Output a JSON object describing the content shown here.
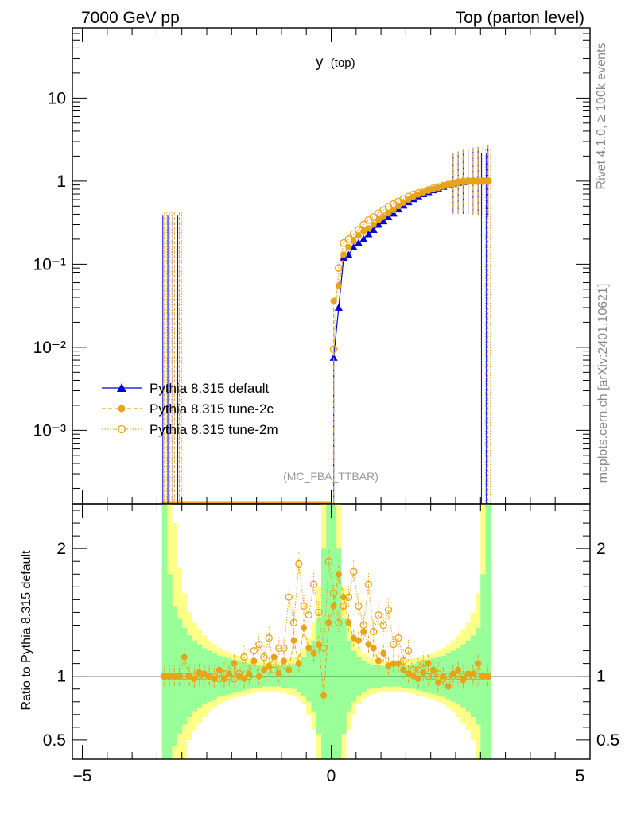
{
  "header": {
    "left": "7000 GeV pp",
    "right": "Top (parton level)"
  },
  "side_labels": {
    "rivet": "Rivet 4.1.0, ≥ 100k events",
    "mcplots": "mcplots.cern.ch [arXiv:2401.10621]"
  },
  "chart_data": {
    "type": "line",
    "title": "y",
    "title_sub": "(top)",
    "watermark": "(MC_FBA_TTBAR)",
    "xlabel": "",
    "ylabel_ratio": "Ratio to Pythia 8.315 default",
    "xlim": [
      -5.2,
      5.2
    ],
    "ylim_main": [
      0.00013,
      70
    ],
    "ylim_ratio": [
      0.35,
      2.35
    ],
    "x_ticks": [
      {
        "v": -5,
        "label": "−5"
      },
      {
        "v": 0,
        "label": "0"
      },
      {
        "v": 5,
        "label": "5"
      }
    ],
    "y_ticks_main": [
      {
        "v": 10,
        "label": "10"
      },
      {
        "v": 1,
        "label": "1"
      },
      {
        "v": 0.1,
        "label": "10⁻¹"
      },
      {
        "v": 0.01,
        "label": "10⁻²"
      },
      {
        "v": 0.001,
        "label": "10⁻³"
      }
    ],
    "y_ticks_ratio": [
      {
        "v": 2,
        "label": "2"
      },
      {
        "v": 1,
        "label": "1"
      },
      {
        "v": 0.5,
        "label": "0.5"
      }
    ],
    "legend": {
      "placement": "middle-left",
      "entries": [
        {
          "name": "Pythia 8.315 default",
          "color": "#0000dd",
          "marker": "triangle",
          "style": "solid"
        },
        {
          "name": "Pythia 8.315 tune-2c",
          "color": "#e8a317",
          "marker": "circle",
          "style": "dashed"
        },
        {
          "name": "Pythia 8.315 tune-2m",
          "color": "#e8a317",
          "marker": "open-circle",
          "style": "dotted"
        }
      ]
    },
    "colors": {
      "band_inner": "#99ff99",
      "band_outer": "#ffff88",
      "default": "#0000dd",
      "tune": "#e8a317"
    },
    "series": [
      {
        "name": "Pythia 8.315 default",
        "x": [
          0.05,
          0.15,
          0.25,
          0.35,
          0.45,
          0.55,
          0.65,
          0.75,
          0.85,
          0.95,
          1.05,
          1.15,
          1.25,
          1.35,
          1.45,
          1.55,
          1.65,
          1.75,
          1.85,
          1.95,
          2.05,
          2.15,
          2.25,
          2.35,
          2.45,
          2.55,
          2.65,
          2.75,
          2.85,
          2.95,
          3.05,
          3.15
        ],
        "y": [
          0.0075,
          0.03,
          0.12,
          0.13,
          0.16,
          0.18,
          0.2,
          0.23,
          0.26,
          0.3,
          0.33,
          0.37,
          0.41,
          0.46,
          0.51,
          0.56,
          0.61,
          0.66,
          0.7,
          0.74,
          0.78,
          0.82,
          0.86,
          0.9,
          0.93,
          0.96,
          0.98,
          1.0,
          1.0,
          1.0,
          1.0,
          1.0
        ]
      },
      {
        "name": "Pythia 8.315 tune-2c",
        "x": [
          0.05,
          0.15,
          0.25,
          0.35,
          0.45,
          0.55,
          0.65,
          0.75,
          0.85,
          0.95,
          1.05,
          1.15,
          1.25,
          1.35,
          1.45,
          1.55,
          1.65,
          1.75,
          1.85,
          1.95,
          2.05,
          2.15,
          2.25,
          2.35,
          2.45,
          2.55,
          2.65,
          2.75,
          2.85,
          2.95,
          3.05,
          3.15
        ],
        "y": [
          0.036,
          0.055,
          0.13,
          0.16,
          0.19,
          0.22,
          0.25,
          0.27,
          0.3,
          0.34,
          0.37,
          0.41,
          0.45,
          0.5,
          0.55,
          0.6,
          0.65,
          0.69,
          0.73,
          0.77,
          0.8,
          0.83,
          0.87,
          0.9,
          0.93,
          0.96,
          0.98,
          1.0,
          1.0,
          1.0,
          1.0,
          1.0
        ]
      },
      {
        "name": "Pythia 8.315 tune-2m",
        "x": [
          0.05,
          0.15,
          0.25,
          0.35,
          0.45,
          0.55,
          0.65,
          0.75,
          0.85,
          0.95,
          1.05,
          1.15,
          1.25,
          1.35,
          1.45,
          1.55,
          1.65,
          1.75,
          1.85,
          1.95,
          2.05,
          2.15,
          2.25,
          2.35,
          2.45,
          2.55,
          2.65,
          2.75,
          2.85,
          2.95,
          3.05,
          3.15
        ],
        "y": [
          0.0095,
          0.09,
          0.18,
          0.2,
          0.23,
          0.26,
          0.3,
          0.34,
          0.37,
          0.41,
          0.45,
          0.49,
          0.53,
          0.57,
          0.61,
          0.65,
          0.69,
          0.72,
          0.75,
          0.78,
          0.82,
          0.85,
          0.88,
          0.91,
          0.94,
          0.97,
          0.99,
          1.0,
          1.0,
          1.0,
          1.0,
          1.0
        ]
      }
    ],
    "spikes": {
      "x": [
        -3.35,
        -3.25,
        -3.15,
        -3.05,
        3.05,
        3.15
      ],
      "top": 0.42,
      "top_right": 2.4
    },
    "floor_range": [
      -3.4,
      0.0
    ],
    "ratio": {
      "x": [
        -3.35,
        -3.25,
        -3.15,
        -3.05,
        -2.95,
        -2.85,
        -2.75,
        -2.65,
        -2.55,
        -2.45,
        -2.35,
        -2.25,
        -2.15,
        -2.05,
        -1.95,
        -1.85,
        -1.75,
        -1.65,
        -1.55,
        -1.45,
        -1.35,
        -1.25,
        -1.15,
        -1.05,
        -0.95,
        -0.85,
        -0.75,
        -0.65,
        -0.55,
        -0.45,
        -0.35,
        -0.25,
        -0.15,
        -0.05,
        0.05,
        0.15,
        0.25,
        0.35,
        0.45,
        0.55,
        0.65,
        0.75,
        0.85,
        0.95,
        1.05,
        1.15,
        1.25,
        1.35,
        1.45,
        1.55,
        1.65,
        1.75,
        1.85,
        1.95,
        2.05,
        2.15,
        2.25,
        2.35,
        2.45,
        2.55,
        2.65,
        2.75,
        2.85,
        2.95,
        3.05,
        3.15
      ],
      "tune2c": [
        1.0,
        1.0,
        1.0,
        1.0,
        1.15,
        1.0,
        0.98,
        1.03,
        1.02,
        1.0,
        0.98,
        1.05,
        0.98,
        1.02,
        1.1,
        1.0,
        0.98,
        1.02,
        1.12,
        1.0,
        1.05,
        1.08,
        1.15,
        1.02,
        1.12,
        1.05,
        1.28,
        1.1,
        1.38,
        1.22,
        1.18,
        1.25,
        0.85,
        1.42,
        1.55,
        1.8,
        1.62,
        1.42,
        1.3,
        1.28,
        1.35,
        1.25,
        1.22,
        1.12,
        1.18,
        1.08,
        1.1,
        1.1,
        1.05,
        1.02,
        1.0,
        0.98,
        1.03,
        1.1,
        1.05,
        0.95,
        1.0,
        0.92,
        1.02,
        1.05,
        0.97,
        1.02,
        1.02,
        1.1,
        1.0,
        1.0
      ],
      "tune2m": [
        1.0,
        1.0,
        1.0,
        1.0,
        1.0,
        1.0,
        1.0,
        1.0,
        1.0,
        1.0,
        1.0,
        0.98,
        1.02,
        1.0,
        0.98,
        1.02,
        1.15,
        1.0,
        1.2,
        1.25,
        1.15,
        1.3,
        1.05,
        1.22,
        1.22,
        1.62,
        1.42,
        1.88,
        1.55,
        1.48,
        1.72,
        1.5,
        1.22,
        1.9,
        1.65,
        1.42,
        1.55,
        1.62,
        1.82,
        1.55,
        1.4,
        1.72,
        1.35,
        1.48,
        1.4,
        1.52,
        1.25,
        1.3,
        1.12,
        1.2,
        1.05,
        1.05,
        1.1,
        1.0,
        1.0,
        1.02,
        0.98,
        1.0,
        1.0,
        1.0,
        1.0,
        1.0,
        1.0,
        1.0,
        1.0,
        1.0
      ],
      "band_inner": [
        2.5,
        1.8,
        1.55,
        1.45,
        1.38,
        1.32,
        1.28,
        1.25,
        1.22,
        1.2,
        1.18,
        1.16,
        1.15,
        1.14,
        1.13,
        1.12,
        1.11,
        1.1,
        1.09,
        1.09,
        1.08,
        1.08,
        1.08,
        1.08,
        1.09,
        1.09,
        1.1,
        1.12,
        1.15,
        1.2,
        1.28,
        1.45,
        2.0,
        2.5,
        2.5,
        2.0,
        1.45,
        1.28,
        1.2,
        1.15,
        1.12,
        1.1,
        1.09,
        1.09,
        1.08,
        1.08,
        1.08,
        1.08,
        1.09,
        1.09,
        1.1,
        1.11,
        1.12,
        1.13,
        1.14,
        1.15,
        1.16,
        1.18,
        1.2,
        1.22,
        1.25,
        1.28,
        1.32,
        1.38,
        1.8,
        2.5
      ],
      "band_outer": [
        2.5,
        2.5,
        2.2,
        1.85,
        1.65,
        1.5,
        1.42,
        1.37,
        1.32,
        1.28,
        1.25,
        1.22,
        1.2,
        1.18,
        1.17,
        1.16,
        1.15,
        1.14,
        1.13,
        1.12,
        1.12,
        1.12,
        1.12,
        1.12,
        1.13,
        1.14,
        1.15,
        1.18,
        1.22,
        1.3,
        1.42,
        1.7,
        2.5,
        2.5,
        2.5,
        2.5,
        1.7,
        1.42,
        1.3,
        1.22,
        1.18,
        1.15,
        1.14,
        1.13,
        1.12,
        1.12,
        1.12,
        1.12,
        1.12,
        1.13,
        1.14,
        1.15,
        1.16,
        1.17,
        1.18,
        1.2,
        1.22,
        1.25,
        1.28,
        1.32,
        1.37,
        1.42,
        1.5,
        1.65,
        2.5,
        2.5
      ]
    }
  }
}
